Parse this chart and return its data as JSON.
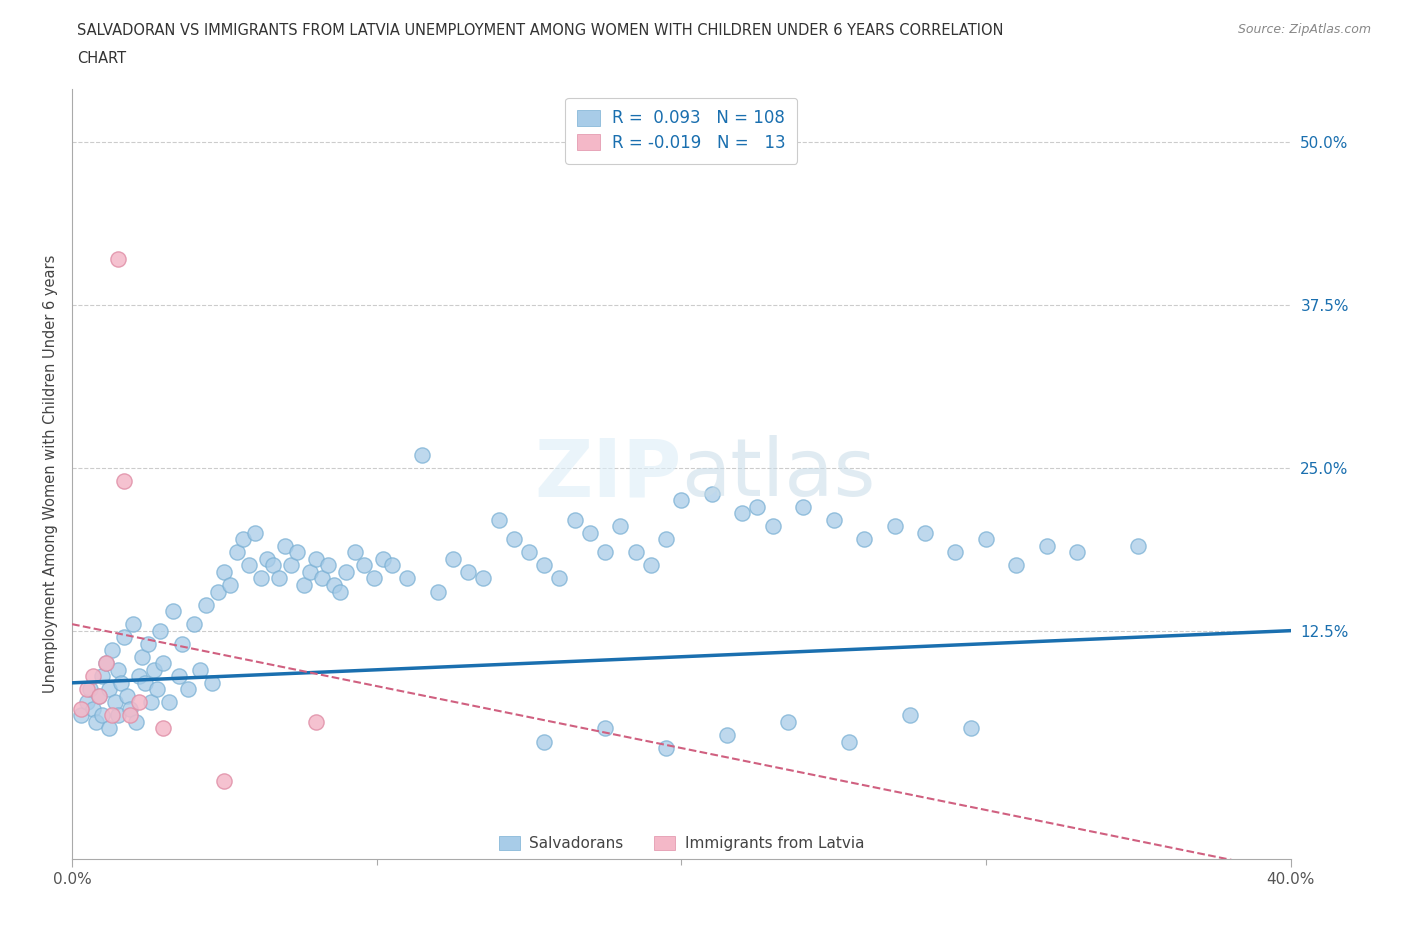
{
  "title_line1": "SALVADORAN VS IMMIGRANTS FROM LATVIA UNEMPLOYMENT AMONG WOMEN WITH CHILDREN UNDER 6 YEARS CORRELATION",
  "title_line2": "CHART",
  "source_text": "Source: ZipAtlas.com",
  "ylabel": "Unemployment Among Women with Children Under 6 years",
  "xlim": [
    0.0,
    0.4
  ],
  "ylim": [
    -0.05,
    0.54
  ],
  "y_tick_labels_right": [
    "50.0%",
    "37.5%",
    "25.0%",
    "12.5%"
  ],
  "y_tick_values_right": [
    0.5,
    0.375,
    0.25,
    0.125
  ],
  "grid_color": "#cccccc",
  "background_color": "#ffffff",
  "blue_color": "#a8cce8",
  "blue_edge_color": "#7ab0d4",
  "pink_color": "#f4b8c8",
  "pink_edge_color": "#e090a8",
  "trendline_blue": "#1a6faf",
  "trendline_pink": "#d06080",
  "legend_R_blue": "0.093",
  "legend_N_blue": "108",
  "legend_R_pink": "-0.019",
  "legend_N_pink": "13",
  "sal_x": [
    0.003,
    0.005,
    0.006,
    0.007,
    0.008,
    0.009,
    0.01,
    0.01,
    0.011,
    0.012,
    0.012,
    0.013,
    0.014,
    0.015,
    0.015,
    0.016,
    0.017,
    0.018,
    0.019,
    0.02,
    0.021,
    0.022,
    0.023,
    0.024,
    0.025,
    0.026,
    0.027,
    0.028,
    0.029,
    0.03,
    0.032,
    0.033,
    0.035,
    0.036,
    0.038,
    0.04,
    0.042,
    0.044,
    0.046,
    0.048,
    0.05,
    0.052,
    0.054,
    0.056,
    0.058,
    0.06,
    0.062,
    0.064,
    0.066,
    0.068,
    0.07,
    0.072,
    0.074,
    0.076,
    0.078,
    0.08,
    0.082,
    0.084,
    0.086,
    0.088,
    0.09,
    0.093,
    0.096,
    0.099,
    0.102,
    0.105,
    0.11,
    0.115,
    0.12,
    0.125,
    0.13,
    0.135,
    0.14,
    0.145,
    0.15,
    0.155,
    0.16,
    0.165,
    0.17,
    0.175,
    0.18,
    0.185,
    0.19,
    0.195,
    0.2,
    0.21,
    0.22,
    0.225,
    0.23,
    0.24,
    0.25,
    0.26,
    0.27,
    0.28,
    0.29,
    0.3,
    0.31,
    0.32,
    0.33,
    0.35,
    0.155,
    0.175,
    0.195,
    0.215,
    0.235,
    0.255,
    0.275,
    0.295
  ],
  "sal_y": [
    0.06,
    0.07,
    0.08,
    0.065,
    0.055,
    0.075,
    0.09,
    0.06,
    0.1,
    0.05,
    0.08,
    0.11,
    0.07,
    0.095,
    0.06,
    0.085,
    0.12,
    0.075,
    0.065,
    0.13,
    0.055,
    0.09,
    0.105,
    0.085,
    0.115,
    0.07,
    0.095,
    0.08,
    0.125,
    0.1,
    0.07,
    0.14,
    0.09,
    0.115,
    0.08,
    0.13,
    0.095,
    0.145,
    0.085,
    0.155,
    0.17,
    0.16,
    0.185,
    0.195,
    0.175,
    0.2,
    0.165,
    0.18,
    0.175,
    0.165,
    0.19,
    0.175,
    0.185,
    0.16,
    0.17,
    0.18,
    0.165,
    0.175,
    0.16,
    0.155,
    0.17,
    0.185,
    0.175,
    0.165,
    0.18,
    0.175,
    0.165,
    0.26,
    0.155,
    0.18,
    0.17,
    0.165,
    0.21,
    0.195,
    0.185,
    0.175,
    0.165,
    0.21,
    0.2,
    0.185,
    0.205,
    0.185,
    0.175,
    0.195,
    0.225,
    0.23,
    0.215,
    0.22,
    0.205,
    0.22,
    0.21,
    0.195,
    0.205,
    0.2,
    0.185,
    0.195,
    0.175,
    0.19,
    0.185,
    0.19,
    0.04,
    0.05,
    0.035,
    0.045,
    0.055,
    0.04,
    0.06,
    0.05
  ],
  "lat_x": [
    0.003,
    0.005,
    0.007,
    0.009,
    0.011,
    0.013,
    0.015,
    0.017,
    0.019,
    0.022,
    0.03,
    0.05,
    0.08
  ],
  "lat_y": [
    0.065,
    0.08,
    0.09,
    0.075,
    0.1,
    0.06,
    0.41,
    0.24,
    0.06,
    0.07,
    0.05,
    0.01,
    0.055
  ],
  "trend_sal_x0": 0.0,
  "trend_sal_x1": 0.4,
  "trend_sal_y0": 0.085,
  "trend_sal_y1": 0.125,
  "trend_lat_x0": 0.0,
  "trend_lat_x1": 0.4,
  "trend_lat_y0": 0.13,
  "trend_lat_y1": -0.06
}
